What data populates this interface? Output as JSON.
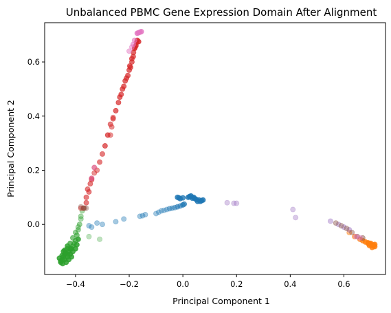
{
  "chart_data": {
    "type": "scatter",
    "title": "Unbalanced PBMC Gene Expression Domain After Alignment",
    "xlabel": "Principal Component 1",
    "ylabel": "Principal Component 2",
    "xlim": [
      -0.515,
      0.755
    ],
    "ylim": [
      -0.185,
      0.745
    ],
    "x_ticks": [
      -0.4,
      -0.2,
      0.0,
      0.2,
      0.4,
      0.6
    ],
    "x_tick_labels": [
      "−0.4",
      "−0.2",
      "0.0",
      "0.2",
      "0.4",
      "0.6"
    ],
    "y_ticks": [
      0.0,
      0.2,
      0.4,
      0.6
    ],
    "y_tick_labels": [
      "0.0",
      "0.2",
      "0.4",
      "0.6"
    ],
    "grid": false,
    "legend": "none",
    "series": [
      {
        "color": "#1f77b4",
        "points": [
          [
            -0.35,
            -0.005
          ],
          [
            -0.34,
            -0.01
          ],
          [
            -0.32,
            0.005
          ],
          [
            -0.3,
            0.0
          ],
          [
            -0.25,
            0.01
          ],
          [
            -0.22,
            0.02
          ],
          [
            -0.16,
            0.03
          ],
          [
            -0.15,
            0.032
          ],
          [
            -0.14,
            0.036
          ],
          [
            -0.1,
            0.04
          ],
          [
            -0.09,
            0.045
          ],
          [
            -0.08,
            0.05
          ],
          [
            -0.07,
            0.052
          ],
          [
            -0.06,
            0.055
          ],
          [
            -0.05,
            0.058
          ],
          [
            -0.04,
            0.06
          ],
          [
            -0.03,
            0.062
          ],
          [
            -0.02,
            0.065
          ],
          [
            -0.01,
            0.068
          ],
          [
            0.0,
            0.072
          ],
          [
            0.005,
            0.075
          ],
          [
            -0.02,
            0.1
          ],
          [
            -0.015,
            0.098
          ],
          [
            -0.01,
            0.095
          ],
          [
            0.0,
            0.098
          ],
          [
            0.02,
            0.1
          ],
          [
            0.03,
            0.105
          ],
          [
            0.04,
            0.1
          ],
          [
            0.045,
            0.095
          ],
          [
            0.05,
            0.092
          ],
          [
            0.06,
            0.09
          ],
          [
            0.07,
            0.088
          ],
          [
            0.055,
            0.085
          ],
          [
            0.065,
            0.085
          ],
          [
            0.075,
            0.09
          ],
          [
            0.035,
            0.097
          ],
          [
            0.025,
            0.103
          ]
        ],
        "opacity": [
          0.4,
          0.4,
          0.4,
          0.4,
          0.4,
          0.4,
          0.4,
          0.4,
          0.4,
          0.4,
          0.4,
          0.4,
          0.4,
          0.4,
          0.5,
          0.5,
          0.5,
          0.6,
          0.6,
          0.7,
          0.7,
          0.8,
          0.8,
          0.8,
          0.8,
          0.85,
          0.85,
          0.85,
          0.85,
          0.85,
          0.85,
          0.85,
          0.85,
          0.85,
          0.85,
          0.85,
          0.85
        ]
      },
      {
        "color": "#ff7f0e",
        "points": [
          [
            0.62,
            -0.03
          ],
          [
            0.64,
            -0.045
          ],
          [
            0.66,
            -0.055
          ],
          [
            0.67,
            -0.06
          ],
          [
            0.68,
            -0.065
          ],
          [
            0.69,
            -0.07
          ],
          [
            0.695,
            -0.072
          ],
          [
            0.7,
            -0.075
          ],
          [
            0.705,
            -0.078
          ],
          [
            0.71,
            -0.08
          ],
          [
            0.715,
            -0.082
          ],
          [
            0.7,
            -0.07
          ],
          [
            0.69,
            -0.068
          ],
          [
            0.705,
            -0.085
          ],
          [
            0.71,
            -0.076
          ],
          [
            0.695,
            -0.078
          ],
          [
            0.715,
            -0.074
          ]
        ],
        "opacity": [
          0.5,
          0.6,
          0.7,
          0.8,
          0.85,
          0.85,
          0.85,
          0.85,
          0.85,
          0.85,
          0.85,
          0.85,
          0.85,
          0.85,
          0.85,
          0.85,
          0.85
        ]
      },
      {
        "color": "#2ca02c",
        "points": [
          [
            -0.35,
            -0.045
          ],
          [
            -0.31,
            -0.055
          ],
          [
            -0.38,
            0.02
          ],
          [
            -0.39,
            -0.01
          ],
          [
            -0.4,
            -0.03
          ],
          [
            -0.41,
            -0.05
          ],
          [
            -0.42,
            -0.07
          ],
          [
            -0.43,
            -0.09
          ],
          [
            -0.44,
            -0.11
          ],
          [
            -0.445,
            -0.12
          ],
          [
            -0.45,
            -0.13
          ],
          [
            -0.455,
            -0.14
          ],
          [
            -0.46,
            -0.125
          ],
          [
            -0.44,
            -0.13
          ],
          [
            -0.43,
            -0.12
          ],
          [
            -0.42,
            -0.11
          ],
          [
            -0.425,
            -0.1
          ],
          [
            -0.415,
            -0.09
          ],
          [
            -0.41,
            -0.08
          ],
          [
            -0.405,
            -0.07
          ],
          [
            -0.4,
            -0.06
          ],
          [
            -0.395,
            -0.04
          ],
          [
            -0.39,
            -0.02
          ],
          [
            -0.385,
            0.0
          ],
          [
            -0.38,
            0.03
          ],
          [
            -0.375,
            0.05
          ],
          [
            -0.37,
            0.06
          ],
          [
            -0.445,
            -0.1
          ],
          [
            -0.435,
            -0.14
          ],
          [
            -0.45,
            -0.115
          ],
          [
            -0.44,
            -0.095
          ],
          [
            -0.43,
            -0.08
          ],
          [
            -0.425,
            -0.13
          ],
          [
            -0.415,
            -0.12
          ],
          [
            -0.455,
            -0.135
          ],
          [
            -0.448,
            -0.145
          ],
          [
            -0.438,
            -0.105
          ],
          [
            -0.41,
            -0.1
          ],
          [
            -0.4,
            -0.09
          ],
          [
            -0.395,
            -0.075
          ],
          [
            -0.39,
            -0.055
          ],
          [
            -0.42,
            -0.09
          ],
          [
            -0.43,
            -0.11
          ]
        ],
        "opacity": [
          0.3,
          0.3,
          0.4,
          0.4,
          0.5,
          0.6,
          0.7,
          0.7,
          0.8,
          0.85,
          0.85,
          0.85,
          0.85,
          0.85,
          0.85,
          0.85,
          0.85,
          0.85,
          0.7,
          0.7,
          0.6,
          0.6,
          0.5,
          0.5,
          0.4,
          0.4,
          0.4,
          0.85,
          0.85,
          0.85,
          0.85,
          0.85,
          0.85,
          0.85,
          0.85,
          0.85,
          0.85,
          0.85,
          0.85,
          0.85,
          0.85,
          0.85,
          0.85
        ]
      },
      {
        "color": "#d62728",
        "points": [
          [
            -0.37,
            0.06
          ],
          [
            -0.38,
            0.06
          ],
          [
            -0.36,
            0.08
          ],
          [
            -0.35,
            0.12
          ],
          [
            -0.34,
            0.17
          ],
          [
            -0.33,
            0.19
          ],
          [
            -0.32,
            0.2
          ],
          [
            -0.31,
            0.23
          ],
          [
            -0.3,
            0.26
          ],
          [
            -0.29,
            0.29
          ],
          [
            -0.28,
            0.33
          ],
          [
            -0.27,
            0.37
          ],
          [
            -0.265,
            0.36
          ],
          [
            -0.26,
            0.39
          ],
          [
            -0.25,
            0.42
          ],
          [
            -0.24,
            0.45
          ],
          [
            -0.235,
            0.47
          ],
          [
            -0.23,
            0.48
          ],
          [
            -0.22,
            0.51
          ],
          [
            -0.21,
            0.54
          ],
          [
            -0.2,
            0.57
          ],
          [
            -0.195,
            0.58
          ],
          [
            -0.19,
            0.6
          ],
          [
            -0.185,
            0.62
          ],
          [
            -0.18,
            0.65
          ],
          [
            -0.175,
            0.66
          ],
          [
            -0.17,
            0.68
          ],
          [
            -0.165,
            0.675
          ],
          [
            -0.36,
            0.1
          ],
          [
            -0.355,
            0.13
          ],
          [
            -0.345,
            0.15
          ],
          [
            -0.34,
            0.165
          ],
          [
            -0.33,
            0.21
          ],
          [
            -0.27,
            0.33
          ],
          [
            -0.26,
            0.395
          ],
          [
            -0.225,
            0.5
          ],
          [
            -0.215,
            0.53
          ],
          [
            -0.205,
            0.55
          ],
          [
            -0.198,
            0.585
          ],
          [
            -0.19,
            0.612
          ],
          [
            -0.184,
            0.635
          ],
          [
            -0.178,
            0.655
          ],
          [
            -0.172,
            0.672
          ]
        ],
        "opacity": [
          0.6,
          0.5,
          0.6,
          0.6,
          0.6,
          0.5,
          0.5,
          0.6,
          0.6,
          0.7,
          0.7,
          0.6,
          0.5,
          0.6,
          0.7,
          0.7,
          0.7,
          0.7,
          0.7,
          0.7,
          0.7,
          0.7,
          0.7,
          0.7,
          0.8,
          0.8,
          0.8,
          0.8,
          0.6,
          0.6,
          0.6,
          0.6,
          0.5,
          0.5,
          0.5,
          0.7,
          0.7,
          0.7,
          0.7,
          0.7,
          0.7,
          0.8,
          0.8
        ]
      },
      {
        "color": "#9467bd",
        "points": [
          [
            0.165,
            0.08
          ],
          [
            0.19,
            0.078
          ],
          [
            0.2,
            0.078
          ],
          [
            0.41,
            0.055
          ],
          [
            0.42,
            0.025
          ],
          [
            0.55,
            0.012
          ],
          [
            0.58,
            0.0
          ],
          [
            0.6,
            -0.01
          ],
          [
            0.62,
            -0.02
          ]
        ],
        "opacity": [
          0.35,
          0.35,
          0.35,
          0.35,
          0.35,
          0.4,
          0.4,
          0.45,
          0.45
        ]
      },
      {
        "color": "#8c564b",
        "points": [
          [
            -0.37,
            0.06
          ],
          [
            -0.365,
            0.06
          ],
          [
            -0.38,
            0.065
          ],
          [
            -0.36,
            0.06
          ],
          [
            0.57,
            0.005
          ],
          [
            0.59,
            -0.005
          ],
          [
            0.61,
            -0.015
          ],
          [
            0.63,
            -0.03
          ],
          [
            0.65,
            -0.045
          ],
          [
            0.67,
            -0.05
          ]
        ],
        "opacity": [
          0.35,
          0.35,
          0.35,
          0.35,
          0.45,
          0.45,
          0.45,
          0.45,
          0.5,
          0.5
        ]
      },
      {
        "color": "#e377c2",
        "points": [
          [
            -0.16,
            0.71
          ],
          [
            -0.165,
            0.708
          ],
          [
            -0.155,
            0.712
          ],
          [
            -0.17,
            0.706
          ],
          [
            -0.18,
            0.68
          ],
          [
            -0.185,
            0.665
          ],
          [
            -0.19,
            0.655
          ],
          [
            -0.2,
            0.64
          ],
          [
            -0.34,
            0.17
          ],
          [
            -0.33,
            0.21
          ],
          [
            0.645,
            -0.045
          ],
          [
            0.66,
            -0.05
          ]
        ],
        "opacity": [
          0.85,
          0.85,
          0.85,
          0.85,
          0.6,
          0.6,
          0.5,
          0.5,
          0.4,
          0.4,
          0.45,
          0.45
        ]
      }
    ]
  }
}
